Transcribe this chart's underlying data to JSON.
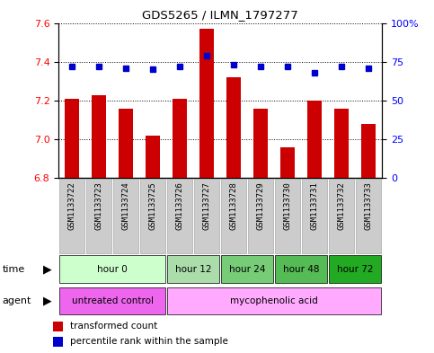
{
  "title": "GDS5265 / ILMN_1797277",
  "samples": [
    "GSM1133722",
    "GSM1133723",
    "GSM1133724",
    "GSM1133725",
    "GSM1133726",
    "GSM1133727",
    "GSM1133728",
    "GSM1133729",
    "GSM1133730",
    "GSM1133731",
    "GSM1133732",
    "GSM1133733"
  ],
  "bar_values": [
    7.21,
    7.23,
    7.16,
    7.02,
    7.21,
    7.57,
    7.32,
    7.16,
    6.96,
    7.2,
    7.16,
    7.08
  ],
  "percentile_values": [
    72,
    72,
    71,
    70,
    72,
    79,
    73,
    72,
    72,
    68,
    72,
    71
  ],
  "ylim_left": [
    6.8,
    7.6
  ],
  "ylim_right": [
    0,
    100
  ],
  "yticks_left": [
    6.8,
    7.0,
    7.2,
    7.4,
    7.6
  ],
  "yticks_right": [
    0,
    25,
    50,
    75,
    100
  ],
  "bar_color": "#cc0000",
  "dot_color": "#0000cc",
  "time_groups": [
    {
      "label": "hour 0",
      "start": 0,
      "end": 4,
      "color": "#ccffcc"
    },
    {
      "label": "hour 12",
      "start": 4,
      "end": 6,
      "color": "#aaddaa"
    },
    {
      "label": "hour 24",
      "start": 6,
      "end": 8,
      "color": "#77cc77"
    },
    {
      "label": "hour 48",
      "start": 8,
      "end": 10,
      "color": "#55bb55"
    },
    {
      "label": "hour 72",
      "start": 10,
      "end": 12,
      "color": "#22aa22"
    }
  ],
  "agent_groups": [
    {
      "label": "untreated control",
      "start": 0,
      "end": 4,
      "color": "#ee66ee"
    },
    {
      "label": "mycophenolic acid",
      "start": 4,
      "end": 12,
      "color": "#ffaaff"
    }
  ],
  "legend_bar_label": "transformed count",
  "legend_dot_label": "percentile rank within the sample",
  "time_label": "time",
  "agent_label": "agent",
  "sample_bg_color": "#cccccc",
  "sample_border_color": "#aaaaaa",
  "figsize": [
    4.83,
    3.93
  ],
  "dpi": 100
}
